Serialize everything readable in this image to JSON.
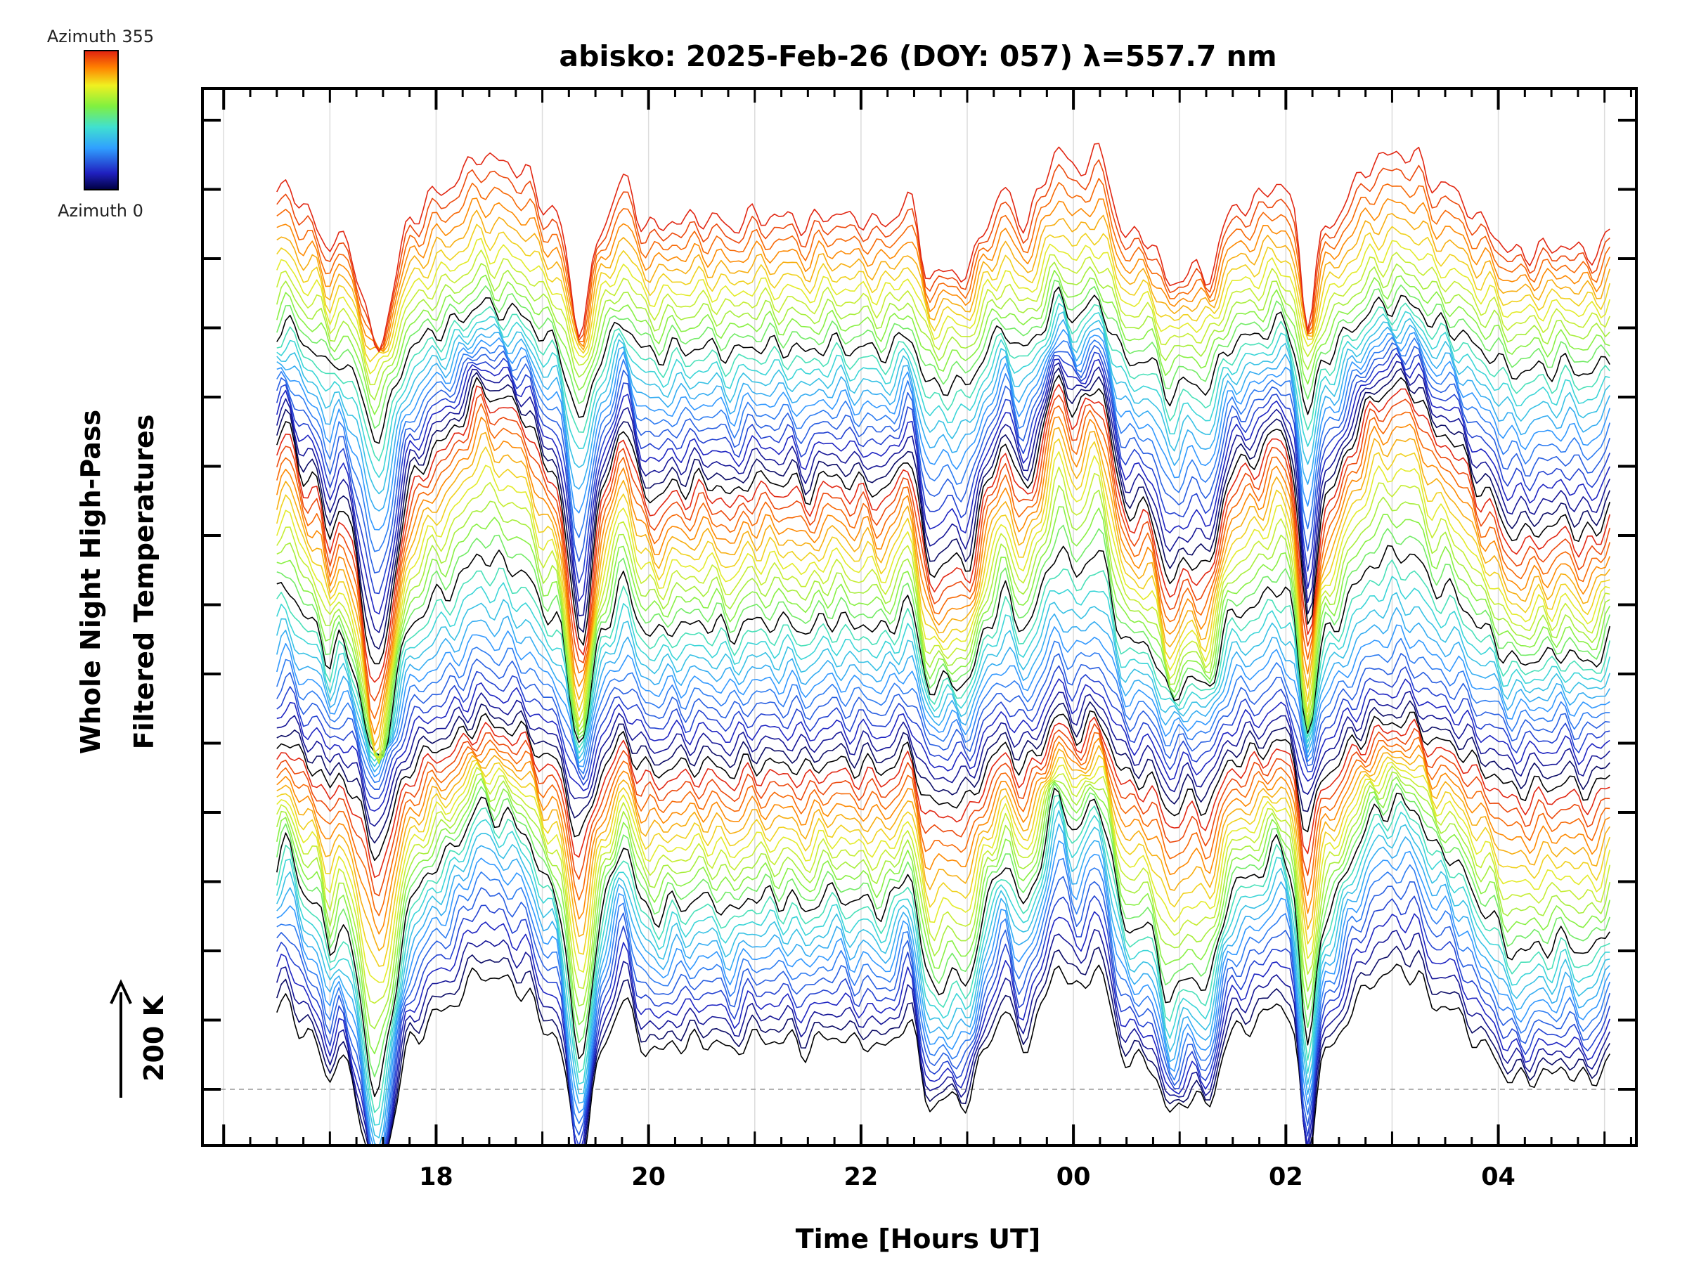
{
  "chart_data": {
    "type": "line",
    "title": "abisko: 2025-Feb-26 (DOY: 057) λ=557.7 nm",
    "xlabel": "Time [Hours UT]",
    "ylabel_line1": "Whole Night High-Pass",
    "ylabel_line2": "Filtered Temperatures",
    "x_tick_labels": [
      "18",
      "20",
      "22",
      "00",
      "02",
      "04"
    ],
    "x_tick_hours": [
      18,
      20,
      22,
      24,
      26,
      28
    ],
    "xlim_hours": [
      15.8,
      29.3
    ],
    "data_start_hour": 16.5,
    "data_end_hour": 29.05,
    "scale_bar_label": "200 K",
    "scale_bar_value_K": 200,
    "colorbar_top_label": "Azimuth 355",
    "colorbar_bottom_label": "Azimuth 0",
    "azimuth_range": [
      0,
      355
    ],
    "azimuth_step": 5,
    "grid": true,
    "colormap": "rainbow (azimuth 0 = dark blue/black, 355 = red)",
    "series_note": "72 vertically offset high-pass filtered temperature traces, one per azimuth from 0 to 355 in 5 degree steps",
    "key_features_hours": {
      "sharp_dips": [
        17.45,
        19.35,
        26.2
      ],
      "broad_peaks": [
        18.5,
        24.1,
        27.0
      ],
      "trough_pairs": [
        22.65,
        25.1
      ]
    }
  }
}
